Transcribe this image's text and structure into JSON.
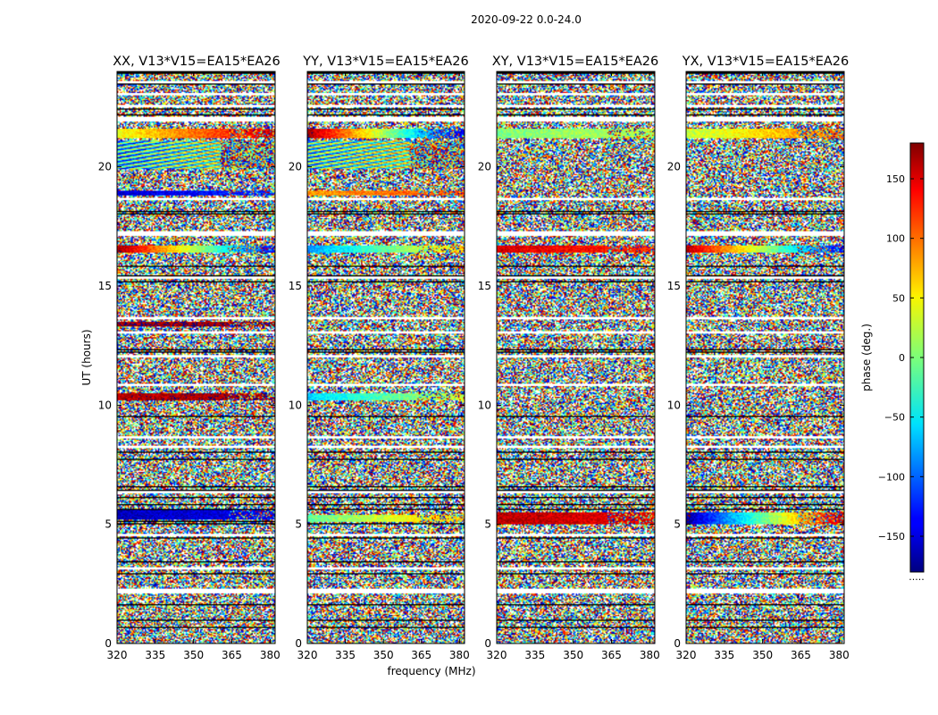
{
  "chart_data": {
    "type": "heatmap",
    "suptitle": "2020-09-22 0.0-24.0",
    "panels": [
      {
        "title": "XX, V13*V15=EA15*EA26"
      },
      {
        "title": "YY, V13*V15=EA15*EA26"
      },
      {
        "title": "XY, V13*V15=EA15*EA26"
      },
      {
        "title": "YX, V13*V15=EA15*EA26"
      }
    ],
    "xlabel": "frequency (MHz)",
    "ylabel": "UT (hours)",
    "xlim": [
      320,
      382
    ],
    "ylim": [
      0,
      24
    ],
    "xticks": [
      320,
      335,
      350,
      365,
      380
    ],
    "xtick_labels": [
      "320",
      "335",
      "350",
      "365",
      "380"
    ],
    "yticks": [
      0,
      5,
      10,
      15,
      20
    ],
    "ytick_labels": [
      "0",
      "5",
      "10",
      "15",
      "20"
    ],
    "colorbar": {
      "label": "phase (deg.)",
      "range": [
        -180,
        180
      ],
      "ticks": [
        150,
        100,
        50,
        0,
        -50,
        -100,
        -150
      ],
      "tick_labels": [
        "150",
        "100",
        "50",
        "0",
        "−50",
        "−100",
        "−150"
      ],
      "colormap": "jet",
      "under_label": "....."
    },
    "flagged_hour_bands": [
      [
        2.1,
        2.3
      ],
      [
        3.1,
        3.2
      ],
      [
        4.5,
        4.6
      ],
      [
        6.3,
        6.4
      ],
      [
        8.2,
        8.3
      ],
      [
        8.6,
        8.7
      ],
      [
        10.8,
        10.9
      ],
      [
        12.0,
        12.1
      ],
      [
        13.0,
        13.1
      ],
      [
        13.6,
        13.7
      ],
      [
        15.3,
        15.4
      ],
      [
        17.1,
        17.3
      ],
      [
        18.6,
        18.7
      ],
      [
        21.9,
        22.1
      ],
      [
        22.5,
        22.6
      ],
      [
        23.0,
        23.1
      ],
      [
        23.5,
        23.6
      ]
    ],
    "coherent_bands": [
      {
        "panel": 0,
        "hours": [
          21.2,
          21.6
        ],
        "phase_start": 40,
        "phase_end": 150
      },
      {
        "panel": 0,
        "hours": [
          19.9,
          21.1
        ],
        "phase_start": -60,
        "phase_end": 40
      },
      {
        "panel": 0,
        "hours": [
          18.8,
          19.0
        ],
        "phase_start": -150,
        "phase_end": -120
      },
      {
        "panel": 0,
        "hours": [
          16.4,
          16.7
        ],
        "phase_start": 170,
        "phase_end": -140
      },
      {
        "panel": 0,
        "hours": [
          13.3,
          13.5
        ],
        "phase_start": 170,
        "phase_end": 170
      },
      {
        "panel": 0,
        "hours": [
          10.2,
          10.5
        ],
        "phase_start": 160,
        "phase_end": 170
      },
      {
        "panel": 0,
        "hours": [
          5.2,
          5.6
        ],
        "phase_start": -160,
        "phase_end": -140
      },
      {
        "panel": 1,
        "hours": [
          21.2,
          21.6
        ],
        "phase_start": 170,
        "phase_end": -150
      },
      {
        "panel": 1,
        "hours": [
          19.9,
          21.1
        ],
        "phase_start": -40,
        "phase_end": 40
      },
      {
        "panel": 1,
        "hours": [
          18.8,
          19.0
        ],
        "phase_start": 80,
        "phase_end": 110
      },
      {
        "panel": 1,
        "hours": [
          16.4,
          16.7
        ],
        "phase_start": -80,
        "phase_end": 60
      },
      {
        "panel": 1,
        "hours": [
          10.2,
          10.5
        ],
        "phase_start": -60,
        "phase_end": 30
      },
      {
        "panel": 1,
        "hours": [
          5.1,
          5.4
        ],
        "phase_start": -10,
        "phase_end": 70
      },
      {
        "panel": 2,
        "hours": [
          21.2,
          21.6
        ],
        "phase_start": 0,
        "phase_end": 20
      },
      {
        "panel": 2,
        "hours": [
          16.4,
          16.7
        ],
        "phase_start": 150,
        "phase_end": 120
      },
      {
        "panel": 2,
        "hours": [
          5.0,
          5.5
        ],
        "phase_start": 160,
        "phase_end": 140
      },
      {
        "panel": 3,
        "hours": [
          21.2,
          21.6
        ],
        "phase_start": 20,
        "phase_end": 100
      },
      {
        "panel": 3,
        "hours": [
          16.4,
          16.7
        ],
        "phase_start": 160,
        "phase_end": -140
      },
      {
        "panel": 3,
        "hours": [
          5.0,
          5.5
        ],
        "phase_start": -170,
        "phase_end": 160
      }
    ]
  }
}
